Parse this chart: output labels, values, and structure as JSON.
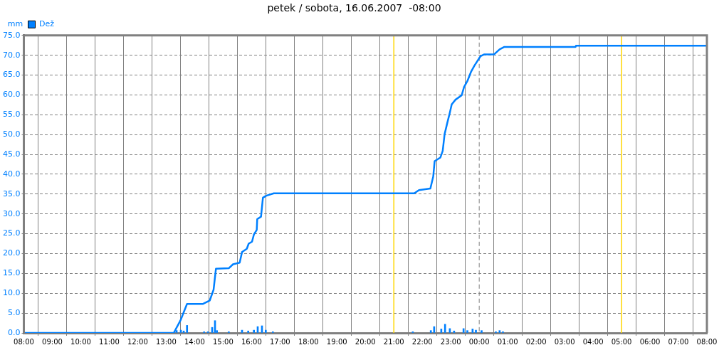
{
  "chart_data": {
    "type": "line",
    "title": "petek / sobota, 16.06.2007  -08:00",
    "ylabel": "mm",
    "xlim": [
      "2007-06-15T08:00",
      "2007-06-16T08:00"
    ],
    "xticks": [
      {
        "value": "2007-06-15T08:00",
        "label": "08:00"
      },
      {
        "value": "2007-06-15T09:00",
        "label": "09:00"
      },
      {
        "value": "2007-06-15T10:00",
        "label": "10:00"
      },
      {
        "value": "2007-06-15T11:00",
        "label": "11:00"
      },
      {
        "value": "2007-06-15T12:00",
        "label": "12:00"
      },
      {
        "value": "2007-06-15T13:00",
        "label": "13:00"
      },
      {
        "value": "2007-06-15T14:00",
        "label": "14:00"
      },
      {
        "value": "2007-06-15T15:00",
        "label": "15:00"
      },
      {
        "value": "2007-06-15T16:00",
        "label": "16:00"
      },
      {
        "value": "2007-06-15T17:00",
        "label": "17:00"
      },
      {
        "value": "2007-06-15T18:00",
        "label": "18:00"
      },
      {
        "value": "2007-06-15T19:00",
        "label": "19:00"
      },
      {
        "value": "2007-06-15T20:00",
        "label": "20:00"
      },
      {
        "value": "2007-06-15T21:00",
        "label": "21:00"
      },
      {
        "value": "2007-06-15T22:00",
        "label": "22:00"
      },
      {
        "value": "2007-06-15T23:00",
        "label": "23:00"
      },
      {
        "value": "2007-06-16T00:00",
        "label": "00:00"
      },
      {
        "value": "2007-06-16T01:00",
        "label": "01:00"
      },
      {
        "value": "2007-06-16T02:00",
        "label": "02:00"
      },
      {
        "value": "2007-06-16T03:00",
        "label": "03:00"
      },
      {
        "value": "2007-06-16T04:00",
        "label": "04:00"
      },
      {
        "value": "2007-06-16T05:00",
        "label": "05:00"
      },
      {
        "value": "2007-06-16T06:00",
        "label": "06:00"
      },
      {
        "value": "2007-06-16T07:00",
        "label": "07:00"
      },
      {
        "value": "2007-06-16T08:00",
        "label": "08:00"
      }
    ],
    "ylim": [
      0,
      75
    ],
    "yticks": [
      {
        "value": 0,
        "label": "0.0"
      },
      {
        "value": 5,
        "label": "5.0"
      },
      {
        "value": 10,
        "label": "10.0"
      },
      {
        "value": 15,
        "label": "15.0"
      },
      {
        "value": 20,
        "label": "20.0"
      },
      {
        "value": 25,
        "label": "25.0"
      },
      {
        "value": 30,
        "label": "30.0"
      },
      {
        "value": 35,
        "label": "35.0"
      },
      {
        "value": 40,
        "label": "40.0"
      },
      {
        "value": 45,
        "label": "45.0"
      },
      {
        "value": 50,
        "label": "50.0"
      },
      {
        "value": 55,
        "label": "55.0"
      },
      {
        "value": 60,
        "label": "60.0"
      },
      {
        "value": 65,
        "label": "65.0"
      },
      {
        "value": 70,
        "label": "70.0"
      },
      {
        "value": 75,
        "label": "75.0"
      }
    ],
    "grid": true,
    "legend": "top left",
    "marker": "none",
    "line_style": "solid",
    "ref_lines": [
      {
        "axis": "x",
        "value": "2007-06-16T00:00",
        "color": "#808080",
        "line_style": "dashed"
      },
      {
        "axis": "x",
        "value": "2007-06-15T21:00",
        "color": "#ffd700"
      },
      {
        "axis": "x",
        "value": "2007-06-16T05:00",
        "color": "#ffd700"
      }
    ],
    "series": [
      {
        "type": "bar",
        "color": "#0080ff",
        "x": [
          "2007-06-15T13:22",
          "2007-06-15T13:31",
          "2007-06-15T13:37",
          "2007-06-15T13:44",
          "2007-06-15T14:20",
          "2007-06-15T14:28",
          "2007-06-15T14:37",
          "2007-06-15T14:43",
          "2007-06-15T14:47",
          "2007-06-15T15:12",
          "2007-06-15T15:40",
          "2007-06-15T15:53",
          "2007-06-15T16:05",
          "2007-06-15T16:13",
          "2007-06-15T16:22",
          "2007-06-15T16:30",
          "2007-06-15T16:45",
          "2007-06-15T21:40",
          "2007-06-15T22:18",
          "2007-06-15T22:25",
          "2007-06-15T22:40",
          "2007-06-15T22:48",
          "2007-06-15T22:58",
          "2007-06-15T23:07",
          "2007-06-15T23:27",
          "2007-06-15T23:35",
          "2007-06-15T23:46",
          "2007-06-15T23:53",
          "2007-06-16T00:05",
          "2007-06-16T00:35",
          "2007-06-16T00:43",
          "2007-06-16T00:50"
        ],
        "values": [
          0.6,
          0.7,
          0.5,
          1.9,
          0.3,
          0.3,
          1.4,
          3.1,
          0.6,
          0.3,
          0.7,
          0.5,
          0.7,
          1.6,
          1.8,
          0.7,
          0.3,
          0.3,
          0.6,
          1.6,
          1.0,
          2.2,
          1.1,
          0.5,
          1.1,
          0.6,
          1.0,
          0.7,
          0.6,
          0.3,
          0.6,
          0.3
        ]
      },
      {
        "name": "Dež",
        "color": "#0080ff",
        "x": [
          "2007-06-15T08:00",
          "2007-06-15T13:16",
          "2007-06-15T13:30",
          "2007-06-15T13:44",
          "2007-06-15T14:17",
          "2007-06-15T14:32",
          "2007-06-15T14:40",
          "2007-06-15T14:45",
          "2007-06-15T15:12",
          "2007-06-15T15:21",
          "2007-06-15T15:35",
          "2007-06-15T15:40",
          "2007-06-15T15:50",
          "2007-06-15T15:54",
          "2007-06-15T16:01",
          "2007-06-15T16:05",
          "2007-06-15T16:11",
          "2007-06-15T16:12",
          "2007-06-15T16:20",
          "2007-06-15T16:24",
          "2007-06-15T16:31",
          "2007-06-15T16:47",
          "2007-06-15T21:43",
          "2007-06-15T21:53",
          "2007-06-15T22:17",
          "2007-06-15T22:23",
          "2007-06-15T22:26",
          "2007-06-15T22:38",
          "2007-06-15T22:43",
          "2007-06-15T22:47",
          "2007-06-15T22:53",
          "2007-06-15T22:58",
          "2007-06-15T23:02",
          "2007-06-15T23:10",
          "2007-06-15T23:23",
          "2007-06-15T23:28",
          "2007-06-15T23:35",
          "2007-06-15T23:43",
          "2007-06-15T23:50",
          "2007-06-16T00:03",
          "2007-06-16T00:10",
          "2007-06-16T00:31",
          "2007-06-16T00:43",
          "2007-06-16T00:53",
          "2007-06-16T03:23",
          "2007-06-16T03:24",
          "2007-06-16T08:00"
        ],
        "values": [
          0,
          0,
          3.1,
          7.3,
          7.3,
          8.2,
          10.9,
          16.2,
          16.3,
          17.3,
          17.7,
          20.4,
          21.2,
          22.5,
          23.0,
          24.8,
          26.0,
          28.7,
          29.3,
          34.1,
          34.6,
          35.2,
          35.2,
          36.0,
          36.4,
          39.4,
          43.3,
          44.2,
          45.9,
          50.1,
          53.1,
          55.5,
          57.6,
          58.8,
          59.9,
          62.0,
          63.5,
          65.9,
          67.4,
          69.8,
          70.2,
          70.2,
          71.5,
          72.1,
          72.1,
          72.4,
          72.4
        ]
      }
    ]
  }
}
